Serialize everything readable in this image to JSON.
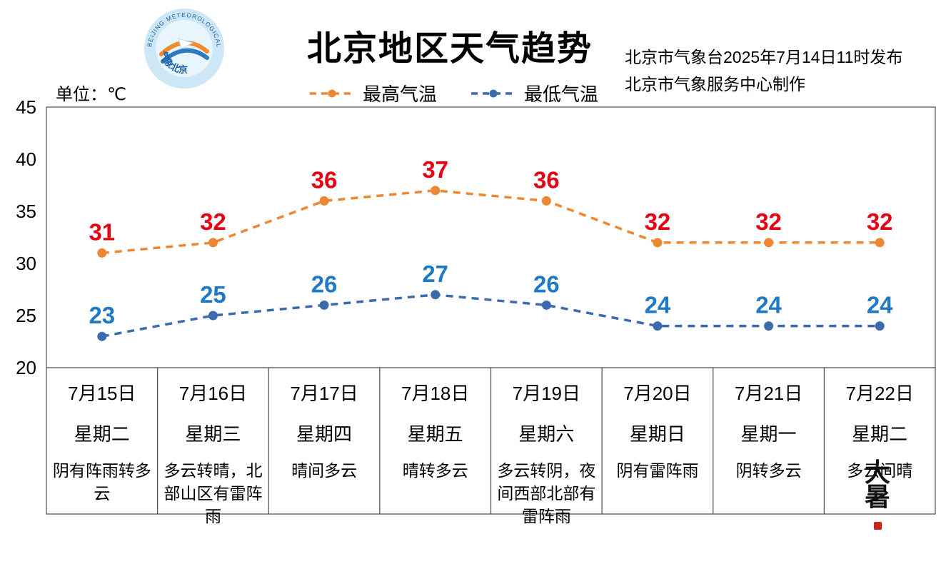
{
  "header": {
    "title": "北京地区天气趋势",
    "unit_label": "单位：℃",
    "issue_line1": "北京市气象台2025年7月14日11时发布",
    "issue_line2": "北京市气象服务中心制作",
    "logo_text_top": "BEIJING METEOROLOGICAL SERVICE",
    "logo_text_bottom": "气象北京"
  },
  "legend": [
    {
      "label": "最高气温",
      "color": "#ED8733"
    },
    {
      "label": "最低气温",
      "color": "#3B6BAE"
    }
  ],
  "stamp": {
    "text_top": "大",
    "text_bottom": "暑"
  },
  "chart_data": {
    "type": "line",
    "title": "北京地区天气趋势",
    "ylabel": "℃",
    "ylim": [
      20,
      45
    ],
    "yticks": [
      45,
      40,
      35,
      30,
      25,
      20
    ],
    "grid": false,
    "legend_position": "top",
    "categories": [
      "7月15日",
      "7月16日",
      "7月17日",
      "7月18日",
      "7月19日",
      "7月20日",
      "7月21日",
      "7月22日"
    ],
    "weekdays": [
      "星期二",
      "星期三",
      "星期四",
      "星期五",
      "星期六",
      "星期日",
      "星期一",
      "星期二"
    ],
    "weather": [
      "阴有阵雨转多云",
      "多云转晴，北部山区有雷阵雨",
      "晴间多云",
      "晴转多云",
      "多云转阴，夜间西部北部有雷阵雨",
      "阴有雷阵雨",
      "阴转多云",
      "多云间晴"
    ],
    "series": [
      {
        "name": "最高气温",
        "color": "#ED8733",
        "label_color": "#E60012",
        "values": [
          31,
          32,
          36,
          37,
          36,
          32,
          32,
          32
        ]
      },
      {
        "name": "最低气温",
        "color": "#3B6BAE",
        "label_color": "#1F7AC6",
        "values": [
          23,
          25,
          26,
          27,
          26,
          24,
          24,
          24
        ]
      }
    ]
  }
}
